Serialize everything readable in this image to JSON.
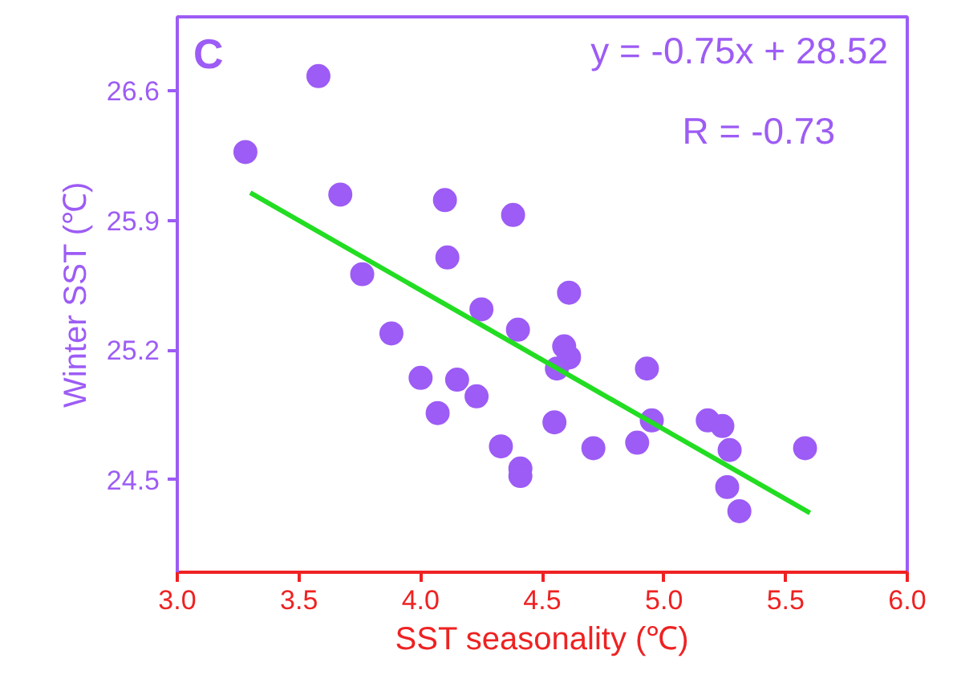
{
  "chart_data": {
    "type": "scatter",
    "xlabel": "SST seasonality (℃)",
    "ylabel": "Winter SST (℃)",
    "annotations": [
      "C",
      "y = -0.75x + 28.52",
      "R = -0.73"
    ],
    "xlim": [
      3.0,
      6.0
    ],
    "xticks": [
      {
        "value": 3.0,
        "label": "3.0"
      },
      3.5,
      {
        "value": 4.0,
        "label": "4.0"
      },
      4.5,
      {
        "value": 5.0,
        "label": "5.0"
      },
      5.5,
      {
        "value": 6.0,
        "label": "6.0"
      }
    ],
    "ylim": [
      24.0,
      27.0
    ],
    "yticks": [
      24.5,
      25.2,
      25.9,
      26.6
    ],
    "grid": false,
    "series": [
      {
        "marker": "circle",
        "color": "#9d5cf5",
        "x": [
          3.28,
          3.58,
          3.67,
          4.1,
          4.38,
          4.11,
          3.76,
          4.61,
          4.25,
          3.88,
          4.4,
          4.59,
          4.61,
          4.56,
          4.93,
          4.0,
          4.15,
          4.23,
          4.07,
          4.55,
          4.33,
          4.71,
          4.89,
          4.95,
          5.18,
          5.24,
          5.27,
          4.41,
          4.41,
          5.26,
          5.31,
          5.58
        ],
        "values": [
          26.27,
          26.68,
          26.04,
          26.01,
          25.93,
          25.7,
          25.61,
          25.51,
          25.42,
          25.29,
          25.31,
          25.22,
          25.16,
          25.1,
          25.1,
          25.05,
          25.04,
          24.95,
          24.86,
          24.81,
          24.68,
          24.67,
          24.7,
          24.82,
          24.82,
          24.79,
          24.66,
          24.56,
          24.52,
          24.46,
          24.33,
          24.67
        ]
      },
      {
        "type": "line",
        "color": "#22dd22",
        "x": [
          3.3,
          5.6
        ],
        "values": [
          26.05,
          24.32
        ]
      }
    ]
  }
}
